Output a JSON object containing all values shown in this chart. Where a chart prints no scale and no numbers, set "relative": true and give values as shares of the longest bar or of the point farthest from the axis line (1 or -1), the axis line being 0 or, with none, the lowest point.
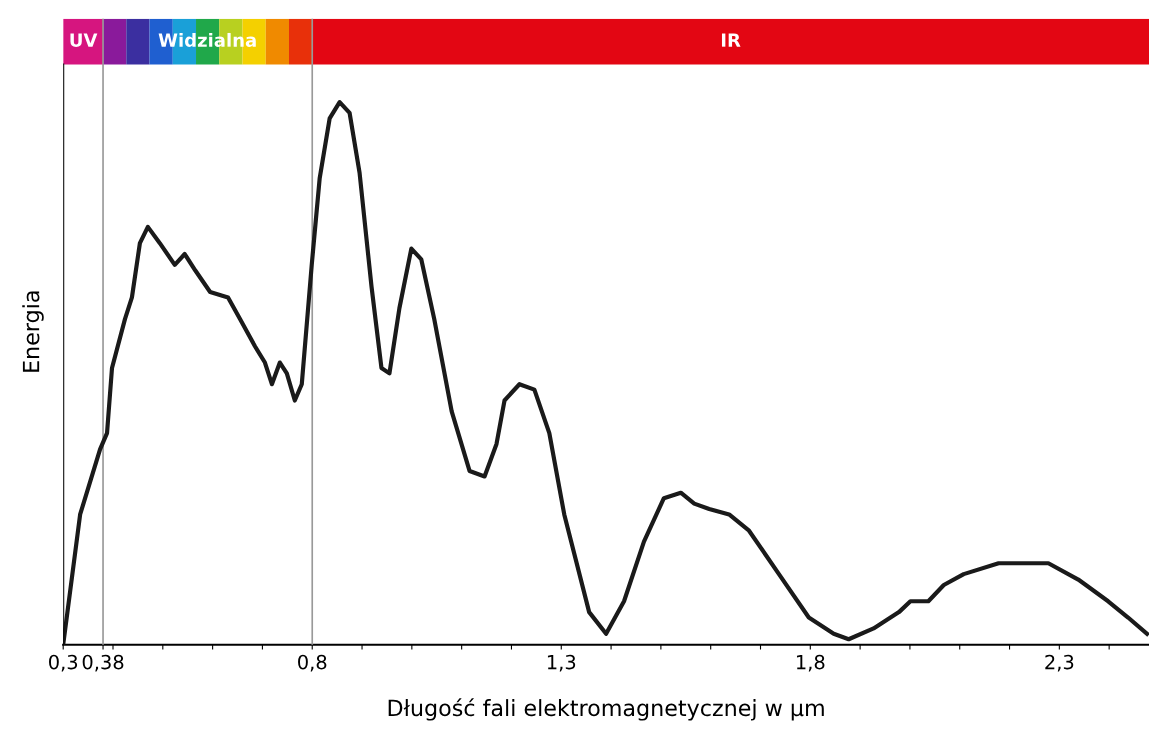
{
  "chart_data": {
    "type": "line",
    "relative": true,
    "xlabel": "Długość fali elektromagnetycznej w µm",
    "ylabel": "Energia",
    "xlim": [
      0.3,
      2.48
    ],
    "xticks": [
      {
        "value": 0.3,
        "label": "0,3"
      },
      {
        "value": 0.38,
        "label": "0,38"
      },
      {
        "value": 0.4,
        "label": null
      },
      {
        "value": 0.5,
        "label": null
      },
      {
        "value": 0.6,
        "label": null
      },
      {
        "value": 0.7,
        "label": null
      },
      {
        "value": 0.8,
        "label": "0,8"
      },
      {
        "value": 0.9,
        "label": null
      },
      {
        "value": 1.0,
        "label": null
      },
      {
        "value": 1.1,
        "label": null
      },
      {
        "value": 1.2,
        "label": null
      },
      {
        "value": 1.3,
        "label": "1,3"
      },
      {
        "value": 1.4,
        "label": null
      },
      {
        "value": 1.5,
        "label": null
      },
      {
        "value": 1.6,
        "label": null
      },
      {
        "value": 1.7,
        "label": null
      },
      {
        "value": 1.8,
        "label": "1,8"
      },
      {
        "value": 1.9,
        "label": null
      },
      {
        "value": 2.0,
        "label": null
      },
      {
        "value": 2.1,
        "label": null
      },
      {
        "value": 2.2,
        "label": null
      },
      {
        "value": 2.3,
        "label": "2,3"
      },
      {
        "value": 2.4,
        "label": null
      }
    ],
    "series": [
      {
        "color": "#1a1a1a",
        "x": [
          0.3,
          0.334,
          0.374,
          0.388,
          0.398,
          0.424,
          0.438,
          0.454,
          0.47,
          0.494,
          0.524,
          0.544,
          0.565,
          0.595,
          0.631,
          0.655,
          0.685,
          0.705,
          0.719,
          0.735,
          0.749,
          0.765,
          0.779,
          0.799,
          0.815,
          0.835,
          0.855,
          0.875,
          0.895,
          0.919,
          0.939,
          0.955,
          0.975,
          0.999,
          1.019,
          1.045,
          1.08,
          1.116,
          1.146,
          1.17,
          1.186,
          1.216,
          1.246,
          1.276,
          1.306,
          1.356,
          1.39,
          1.426,
          1.466,
          1.506,
          1.54,
          1.567,
          1.597,
          1.637,
          1.677,
          1.737,
          1.797,
          1.847,
          1.877,
          1.927,
          1.978,
          2.001,
          2.037,
          2.068,
          2.108,
          2.178,
          2.218,
          2.278,
          2.338,
          2.398,
          2.438,
          2.476
        ],
        "values": [
          0,
          0.24,
          0.36,
          0.39,
          0.51,
          0.6,
          0.64,
          0.74,
          0.77,
          0.74,
          0.7,
          0.72,
          0.69,
          0.65,
          0.64,
          0.6,
          0.55,
          0.52,
          0.48,
          0.52,
          0.5,
          0.45,
          0.48,
          0.7,
          0.86,
          0.97,
          1,
          0.98,
          0.87,
          0.66,
          0.51,
          0.5,
          0.62,
          0.73,
          0.71,
          0.6,
          0.43,
          0.32,
          0.31,
          0.37,
          0.45,
          0.48,
          0.47,
          0.39,
          0.24,
          0.06,
          0.02,
          0.08,
          0.19,
          0.27,
          0.28,
          0.26,
          0.25,
          0.24,
          0.21,
          0.13,
          0.05,
          0.02,
          0.01,
          0.03,
          0.06,
          0.08,
          0.08,
          0.11,
          0.13,
          0.15,
          0.15,
          0.15,
          0.12,
          0.08,
          0.05,
          0.02
        ]
      }
    ],
    "annotations": [
      "UV",
      "Widzialna",
      "IR"
    ],
    "ref_lines": [
      {
        "axis": "x",
        "value": 0.38,
        "color": "#999999"
      },
      {
        "axis": "x",
        "value": 0.8,
        "color": "#999999"
      }
    ],
    "line_style": "solid",
    "marker": "none",
    "grid": false,
    "legend": false
  }
}
